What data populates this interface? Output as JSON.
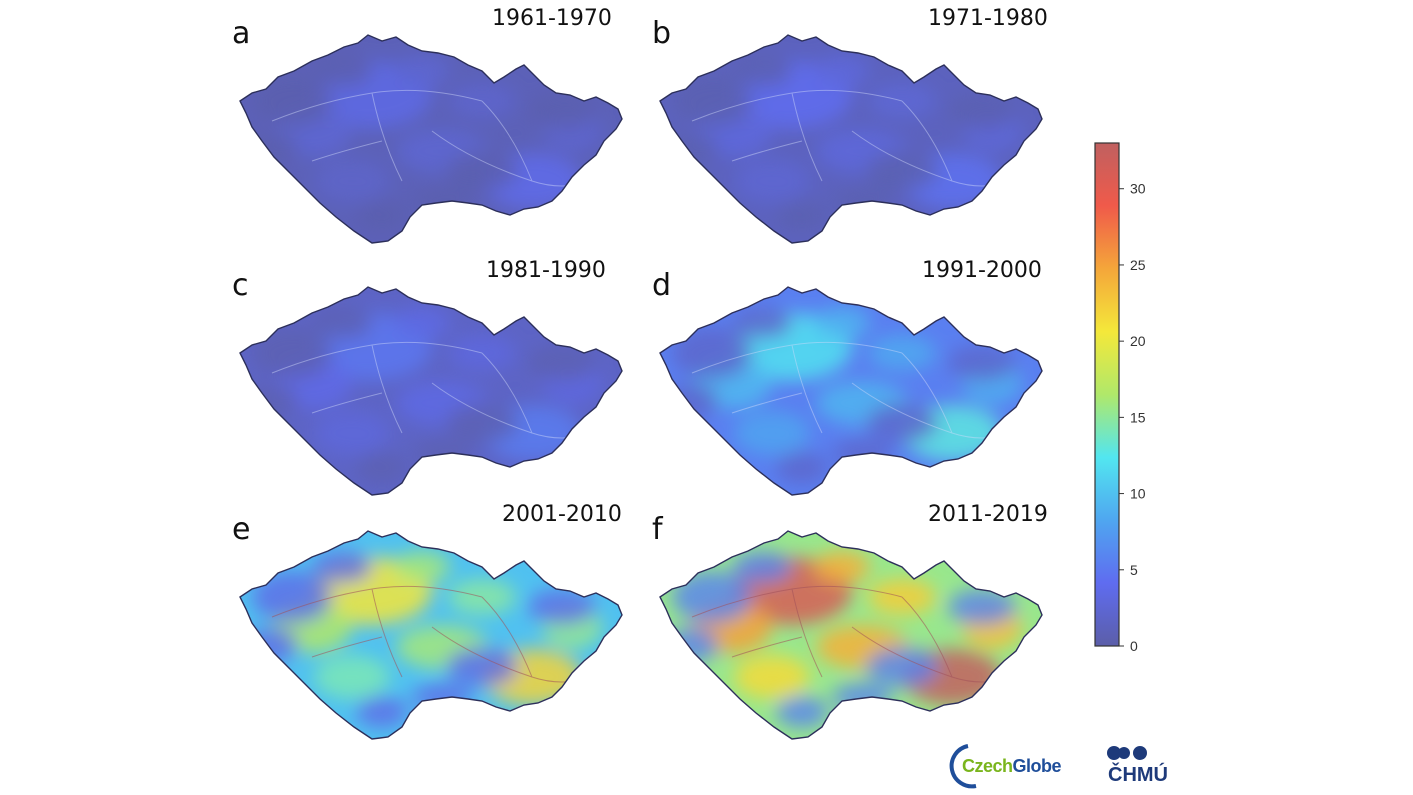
{
  "panels": [
    {
      "letter": "a",
      "period": "1961-1970",
      "level": 0.05
    },
    {
      "letter": "b",
      "period": "1971-1980",
      "level": 0.07
    },
    {
      "letter": "c",
      "period": "1981-1990",
      "level": 0.09
    },
    {
      "letter": "d",
      "period": "1991-2000",
      "level": 0.3
    },
    {
      "letter": "e",
      "period": "2001-2010",
      "level": 0.55
    },
    {
      "letter": "f",
      "period": "2011-2019",
      "level": 0.85
    }
  ],
  "colorbar": {
    "ticks": [
      "0",
      "5",
      "10",
      "15",
      "20",
      "25",
      "30"
    ],
    "min": 0,
    "max": 33,
    "colors": [
      "#5b5ea8",
      "#5f6cf0",
      "#4fa6f0",
      "#52e6f0",
      "#b0e86a",
      "#f4e83a",
      "#f4a63a",
      "#f05a4a",
      "#c06060"
    ]
  },
  "logos": {
    "czechglobe_part1": "Czech",
    "czechglobe_part2": "Globe",
    "chmu": "ČHMÚ",
    "czech_green": "#7ab51d",
    "globe_blue": "#1f4e9a",
    "chmu_blue": "#1e3a7a"
  }
}
